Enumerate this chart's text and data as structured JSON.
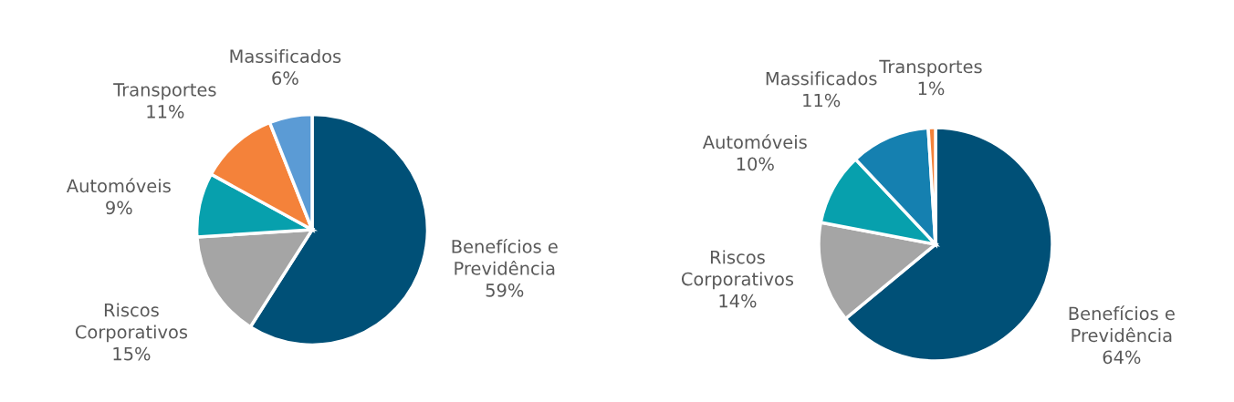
{
  "chart_data": [
    {
      "type": "pie",
      "categories": [
        "Benefícios e\nPrevidência",
        "Riscos\nCorporativos",
        "Automóveis",
        "Transportes",
        "Massificados"
      ],
      "values": [
        59,
        15,
        9,
        11,
        6
      ],
      "value_labels": [
        "59%",
        "15%",
        "9%",
        "11%",
        "6%"
      ],
      "colors": [
        "#005077",
        "#a5a5a5",
        "#07a0ad",
        "#f4823a",
        "#5b9bd5"
      ]
    },
    {
      "type": "pie",
      "categories": [
        "Benefícios e\nPrevidência",
        "Riscos\nCorporativos",
        "Automóveis",
        "Massificados",
        "Transportes"
      ],
      "values": [
        64,
        14,
        10,
        11,
        1
      ],
      "value_labels": [
        "64%",
        "14%",
        "10%",
        "11%",
        "1%"
      ],
      "colors": [
        "#005077",
        "#a5a5a5",
        "#07a0ad",
        "#1580b0",
        "#f4823a"
      ]
    }
  ]
}
